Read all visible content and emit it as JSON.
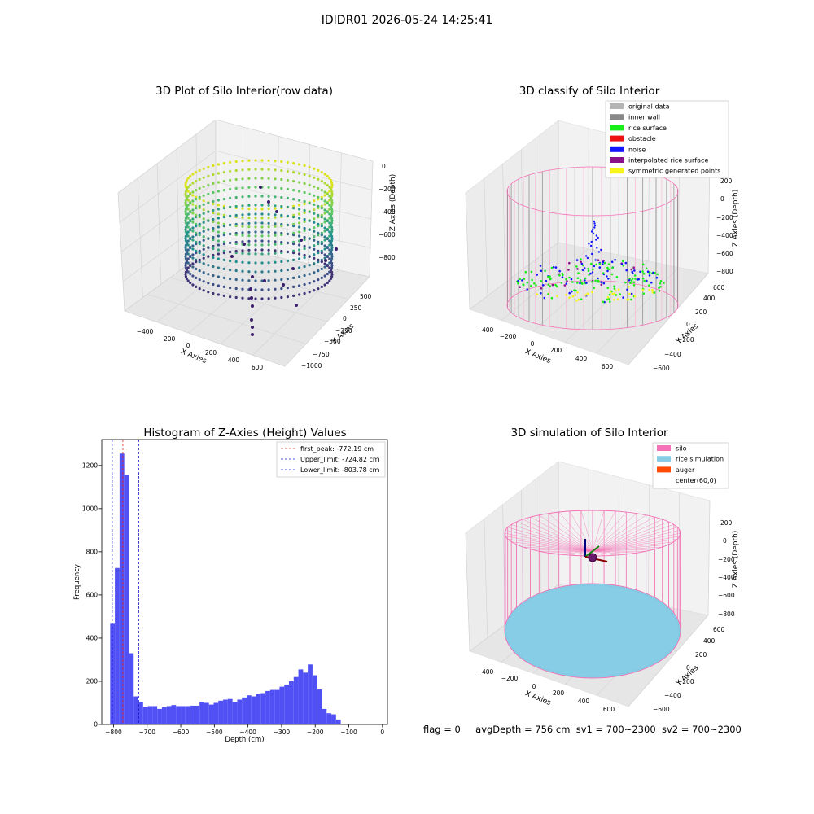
{
  "suptitle": "IDIDR01 2026-05-24 14:25:41",
  "status_line": {
    "flag": "flag = 0",
    "avg_depth": "avgDepth = 756 cm",
    "sv1": "sv1 = 700~2300",
    "sv2": "sv2 = 700~2300"
  },
  "colors": {
    "hist_bar": "#5050f5",
    "first_peak_line": "#e32020",
    "limit_line": "#1a1ad0",
    "original_data": "#b5b5b5",
    "inner_wall": "#888888",
    "rice_surface": "#1aee1a",
    "obstacle": "#ee1111",
    "noise": "#1414ff",
    "interpolated_rice_surface": "#8a0f8a",
    "symmetric_generated_points": "#f5f51a",
    "silo": "#f472b6",
    "rice_simulation": "#87cde6",
    "auger": "#ff4a0a"
  },
  "chart_data": [
    {
      "type": "scatter3d",
      "title": "3D Plot of Silo Interior(row data)",
      "xlabel": "X Axies",
      "ylabel": "Y Axies",
      "zlabel": "Z Axies (Depth)",
      "xticks": [
        "−400",
        "−200",
        "0",
        "200",
        "400",
        "600"
      ],
      "yticks": [
        "500",
        "250",
        "0",
        "−250",
        "−500",
        "−750",
        "−1000"
      ],
      "zticks": [
        "0",
        "−200",
        "−400",
        "−600",
        "−800"
      ],
      "xlim": [
        -550,
        700
      ],
      "ylim": [
        -1050,
        600
      ],
      "zlim": [
        -850,
        0
      ],
      "colormap": "viridis"
    },
    {
      "type": "scatter3d",
      "title": "3D classify of Silo Interior",
      "xlabel": "X Axies",
      "ylabel": "Y Axies",
      "zlabel": "Z Axies (Depth)",
      "xticks": [
        "−400",
        "−200",
        "0",
        "200",
        "400",
        "600"
      ],
      "yticks": [
        "600",
        "400",
        "200",
        "0",
        "−200",
        "−400",
        "−600"
      ],
      "zticks": [
        "200",
        "0",
        "−200",
        "−400",
        "−600",
        "−800"
      ],
      "legend_position": "top-right",
      "legend": [
        {
          "label": "original data",
          "color_key": "original_data"
        },
        {
          "label": "inner wall",
          "color_key": "inner_wall"
        },
        {
          "label": "rice surface",
          "color_key": "rice_surface"
        },
        {
          "label": "obstacle",
          "color_key": "obstacle"
        },
        {
          "label": "noise",
          "color_key": "noise"
        },
        {
          "label": "interpolated rice surface",
          "color_key": "interpolated_rice_surface"
        },
        {
          "label": "symmetric generated points",
          "color_key": "symmetric_generated_points"
        }
      ]
    },
    {
      "type": "bar",
      "title": "Histogram of Z-Axies (Height) Values",
      "xlabel": "Depth (cm)",
      "ylabel": "Frequency",
      "xlim": [
        -835,
        15
      ],
      "ylim": [
        0,
        1320
      ],
      "xticks": [
        -800,
        -700,
        -600,
        -500,
        -400,
        -300,
        -200,
        -100,
        0
      ],
      "yticks": [
        0,
        200,
        400,
        600,
        800,
        1000,
        1200
      ],
      "bin_start": -810,
      "bin_width": 14,
      "values": [
        470,
        725,
        1255,
        1155,
        330,
        130,
        105,
        80,
        85,
        85,
        72,
        80,
        85,
        90,
        85,
        85,
        85,
        87,
        87,
        105,
        100,
        92,
        100,
        110,
        115,
        118,
        105,
        115,
        125,
        135,
        130,
        140,
        145,
        155,
        160,
        160,
        175,
        185,
        200,
        220,
        255,
        240,
        278,
        228,
        162,
        72,
        52,
        47,
        23
      ],
      "vlines": [
        {
          "label": "first_peak: -772.19 cm",
          "x": -772.19,
          "color_key": "first_peak_line"
        },
        {
          "label": "Upper_limit: -724.82 cm",
          "x": -724.82,
          "color_key": "limit_line"
        },
        {
          "label": "Lower_limit: -803.78 cm",
          "x": -803.78,
          "color_key": "limit_line"
        }
      ],
      "legend_position": "top-right"
    },
    {
      "type": "surface3d",
      "title": "3D simulation of Silo Interior",
      "xlabel": "X Axies",
      "ylabel": "Y Axies",
      "zlabel": "Z Axies (Depth)",
      "xticks": [
        "−400",
        "−200",
        "0",
        "200",
        "400",
        "600"
      ],
      "yticks": [
        "600",
        "400",
        "200",
        "0",
        "−200",
        "−400",
        "−600"
      ],
      "zticks": [
        "200",
        "0",
        "−200",
        "−400",
        "−600",
        "−800"
      ],
      "legend_position": "top-right",
      "legend": [
        {
          "label": "silo",
          "color_key": "silo"
        },
        {
          "label": "rice simulation",
          "color_key": "rice_simulation"
        },
        {
          "label": "auger",
          "color_key": "auger"
        },
        {
          "label": "center(60,0)",
          "color_key": ""
        }
      ]
    }
  ]
}
